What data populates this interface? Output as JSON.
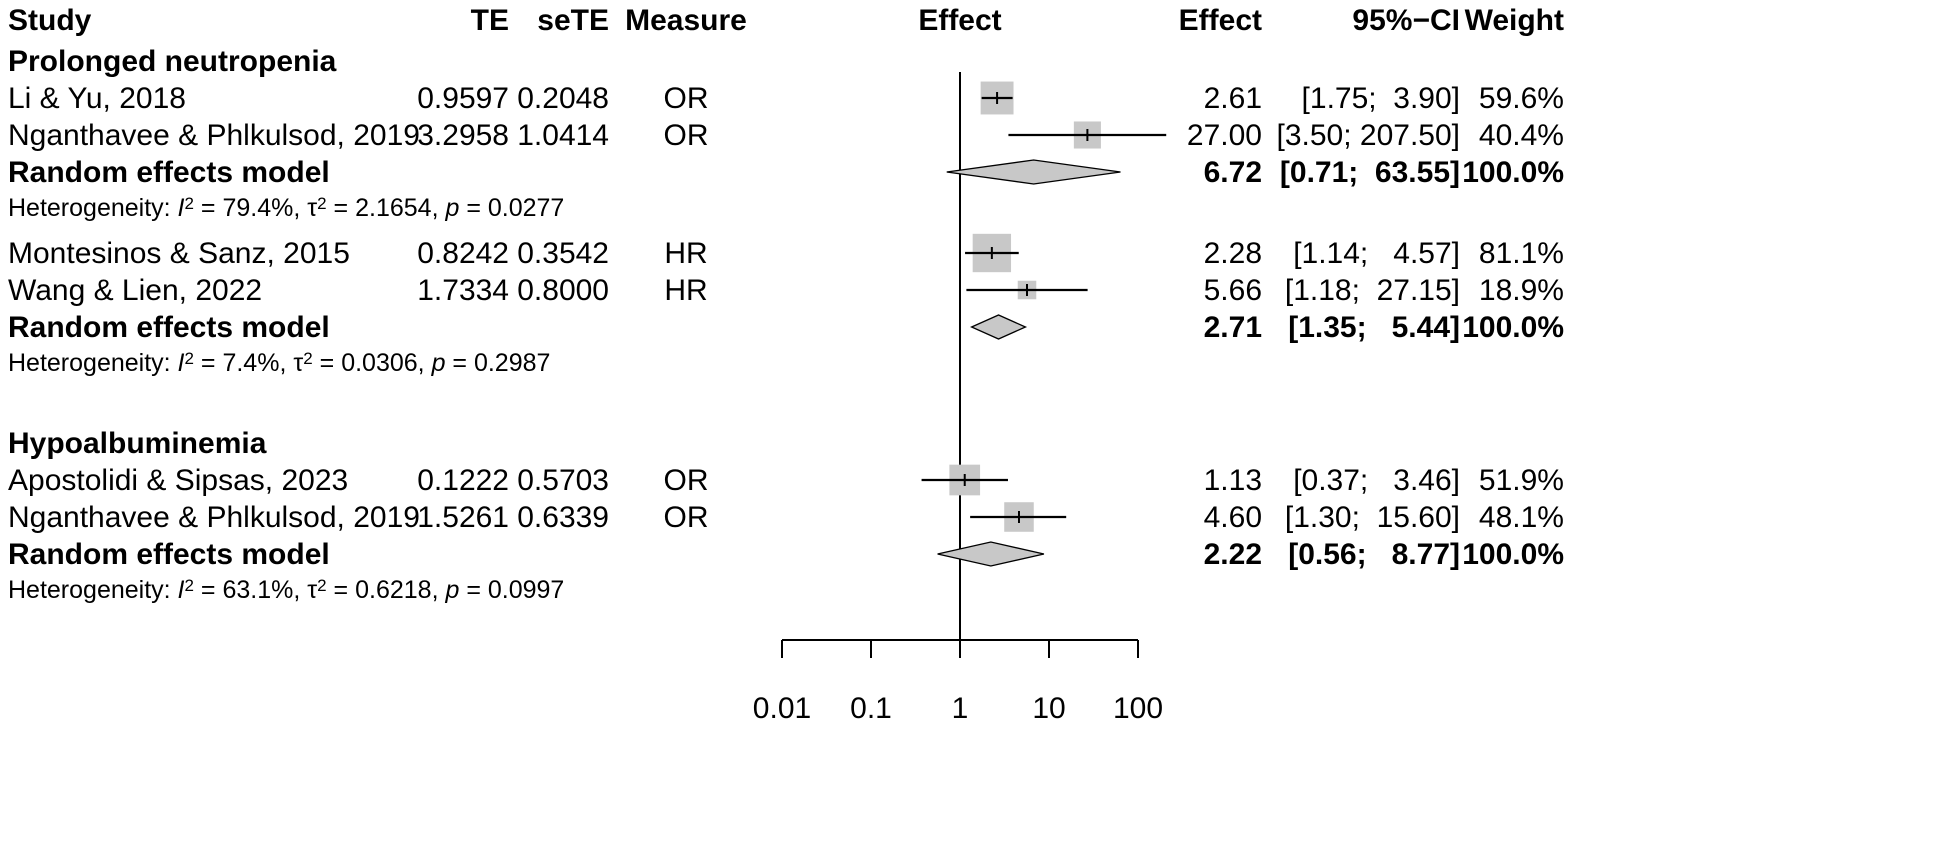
{
  "chart_data": {
    "type": "forest",
    "headers": {
      "study": "Study",
      "te": "TE",
      "sete": "seTE",
      "measure": "Measure",
      "effect_plot": "Effect",
      "effect": "Effect",
      "ci": "95%−CI",
      "weight": "Weight"
    },
    "xaxis": {
      "scale": "log",
      "range": [
        0.01,
        100
      ],
      "ticks": [
        0.01,
        0.1,
        1,
        10,
        100
      ],
      "tick_labels": [
        "0.01",
        "0.1",
        "1",
        "10",
        "100"
      ],
      "null_line": 1
    },
    "groups": [
      {
        "name": "Prolonged neutropenia",
        "studies": [
          {
            "study": "Li & Yu, 2018",
            "te": "0.9597",
            "sete": "0.2048",
            "measure": "OR",
            "effect": 2.61,
            "lower": 1.75,
            "upper": 3.9,
            "effect_text": "2.61",
            "ci_text": "[1.75;  3.90]",
            "weight_text": "59.6%",
            "weight": 59.6
          },
          {
            "study": "Nganthavee & Phlkulsod, 2019",
            "te": "3.2958",
            "sete": "1.0414",
            "measure": "OR",
            "effect": 27.0,
            "lower": 3.5,
            "upper": 207.5,
            "effect_text": "27.00",
            "ci_text": "[3.50; 207.50]",
            "weight_text": "40.4%",
            "weight": 40.4
          }
        ],
        "pooled": {
          "label": "Random effects model",
          "effect": 6.72,
          "lower": 0.71,
          "upper": 63.55,
          "effect_text": "6.72",
          "ci_text": "[0.71;  63.55]",
          "weight_text": "100.0%"
        },
        "heterogeneity": {
          "prefix": "Heterogeneity: ",
          "i2_sym": "I",
          "i2_sup": "2",
          "i2_val": " = 79.4%, ",
          "tau_sym": "τ",
          "tau_sup": "2",
          "tau_val": " = 2.1654, ",
          "p_sym": "p",
          "p_val": " = 0.0277"
        }
      },
      {
        "name": "",
        "studies": [
          {
            "study": "Montesinos & Sanz, 2015",
            "te": "0.8242",
            "sete": "0.3542",
            "measure": "HR",
            "effect": 2.28,
            "lower": 1.14,
            "upper": 4.57,
            "effect_text": "2.28",
            "ci_text": "[1.14;   4.57]",
            "weight_text": "81.1%",
            "weight": 81.1
          },
          {
            "study": "Wang & Lien, 2022",
            "te": "1.7334",
            "sete": "0.8000",
            "measure": "HR",
            "effect": 5.66,
            "lower": 1.18,
            "upper": 27.15,
            "effect_text": "5.66",
            "ci_text": "[1.18;  27.15]",
            "weight_text": "18.9%",
            "weight": 18.9
          }
        ],
        "pooled": {
          "label": "Random effects model",
          "effect": 2.71,
          "lower": 1.35,
          "upper": 5.44,
          "effect_text": "2.71",
          "ci_text": "[1.35;   5.44]",
          "weight_text": "100.0%"
        },
        "heterogeneity": {
          "prefix": "Heterogeneity: ",
          "i2_sym": "I",
          "i2_sup": "2",
          "i2_val": " = 7.4%, ",
          "tau_sym": "τ",
          "tau_sup": "2",
          "tau_val": " = 0.0306, ",
          "p_sym": "p",
          "p_val": " = 0.2987"
        }
      },
      {
        "name": "Hypoalbuminemia",
        "studies": [
          {
            "study": "Apostolidi & Sipsas, 2023",
            "te": "0.1222",
            "sete": "0.5703",
            "measure": "OR",
            "effect": 1.13,
            "lower": 0.37,
            "upper": 3.46,
            "effect_text": "1.13",
            "ci_text": "[0.37;   3.46]",
            "weight_text": "51.9%",
            "weight": 51.9
          },
          {
            "study": "Nganthavee & Phlkulsod, 2019",
            "te": "1.5261",
            "sete": "0.6339",
            "measure": "OR",
            "effect": 4.6,
            "lower": 1.3,
            "upper": 15.6,
            "effect_text": "4.60",
            "ci_text": "[1.30;  15.60]",
            "weight_text": "48.1%",
            "weight": 48.1
          }
        ],
        "pooled": {
          "label": "Random effects model",
          "effect": 2.22,
          "lower": 0.56,
          "upper": 8.77,
          "effect_text": "2.22",
          "ci_text": "[0.56;   8.77]",
          "weight_text": "100.0%"
        },
        "heterogeneity": {
          "prefix": "Heterogeneity: ",
          "i2_sym": "I",
          "i2_sup": "2",
          "i2_val": " = 63.1%, ",
          "tau_sym": "τ",
          "tau_sup": "2",
          "tau_val": " = 0.6218, ",
          "p_sym": "p",
          "p_val": " = 0.0997"
        }
      }
    ]
  }
}
